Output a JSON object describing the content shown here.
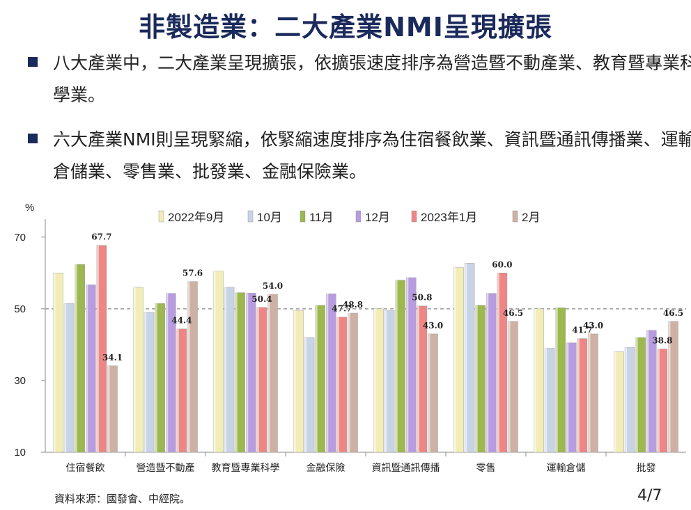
{
  "title": "非製造業：二大產業NMI呈現擴張",
  "bullets": [
    "八大產業中，二大產業呈現擴張，依擴張速度排序為營造暨不動產業、教育暨專業科學業。",
    "六大產業NMI則呈現緊縮，依緊縮速度排序為住宿餐飲業、資訊暨通訊傳播業、運輸倉儲業、零售業、批發業、金融保險業。"
  ],
  "colors": {
    "title": "#1b2a5c",
    "bullet_square": "#1b2a5c",
    "series": [
      "#f2ecb6",
      "#c9d3e6",
      "#9cb84e",
      "#b79ce0",
      "#ee8686",
      "#cfb0a5"
    ],
    "reference_line": "#999999"
  },
  "chart_data": {
    "type": "bar",
    "ylabel": "%",
    "ylim": [
      10,
      75
    ],
    "yticks": [
      10,
      30,
      50,
      70
    ],
    "reference_line": 50,
    "grid": false,
    "legend_position": "top",
    "categories": [
      "住宿餐飲",
      "營造暨不動產",
      "教育暨專業科學",
      "金融保險",
      "資訊暨通訊傳播",
      "零售",
      "運輸倉儲",
      "批發"
    ],
    "series": [
      {
        "name": "2022年9月",
        "values": [
          60.0,
          56.0,
          60.5,
          49.5,
          50.0,
          61.5,
          50.0,
          38.0
        ]
      },
      {
        "name": "10月",
        "values": [
          51.5,
          49.0,
          56.0,
          42.0,
          49.5,
          62.7,
          39.0,
          39.2
        ]
      },
      {
        "name": "11月",
        "values": [
          62.4,
          51.5,
          54.5,
          51.0,
          58.0,
          51.0,
          50.3,
          42.0
        ]
      },
      {
        "name": "12月",
        "values": [
          56.7,
          54.3,
          54.4,
          54.2,
          58.7,
          54.3,
          40.5,
          44.0
        ]
      },
      {
        "name": "2023年1月",
        "values": [
          67.7,
          44.4,
          50.4,
          47.7,
          50.8,
          60.0,
          41.7,
          38.8
        ]
      },
      {
        "name": "2月",
        "values": [
          34.1,
          57.6,
          54.0,
          48.8,
          43.0,
          46.5,
          43.0,
          46.5
        ]
      }
    ],
    "data_labels": [
      {
        "category": 0,
        "series": 4,
        "text": "67.7"
      },
      {
        "category": 0,
        "series": 5,
        "text": "34.1"
      },
      {
        "category": 1,
        "series": 4,
        "text": "44.4"
      },
      {
        "category": 1,
        "series": 5,
        "text": "57.6"
      },
      {
        "category": 2,
        "series": 4,
        "text": "50.4"
      },
      {
        "category": 2,
        "series": 5,
        "text": "54.0"
      },
      {
        "category": 3,
        "series": 4,
        "text": "47.7"
      },
      {
        "category": 3,
        "series": 5,
        "text": "48.8"
      },
      {
        "category": 4,
        "series": 4,
        "text": "50.8"
      },
      {
        "category": 4,
        "series": 5,
        "text": "43.0"
      },
      {
        "category": 5,
        "series": 4,
        "text": "60.0"
      },
      {
        "category": 5,
        "series": 5,
        "text": "46.5"
      },
      {
        "category": 6,
        "series": 4,
        "text": "41.7"
      },
      {
        "category": 6,
        "series": 5,
        "text": "43.0"
      },
      {
        "category": 7,
        "series": 4,
        "text": "38.8"
      },
      {
        "category": 7,
        "series": 5,
        "text": "46.5"
      }
    ]
  },
  "source": "資料來源：國發會、中經院。",
  "page_number": "4/7"
}
